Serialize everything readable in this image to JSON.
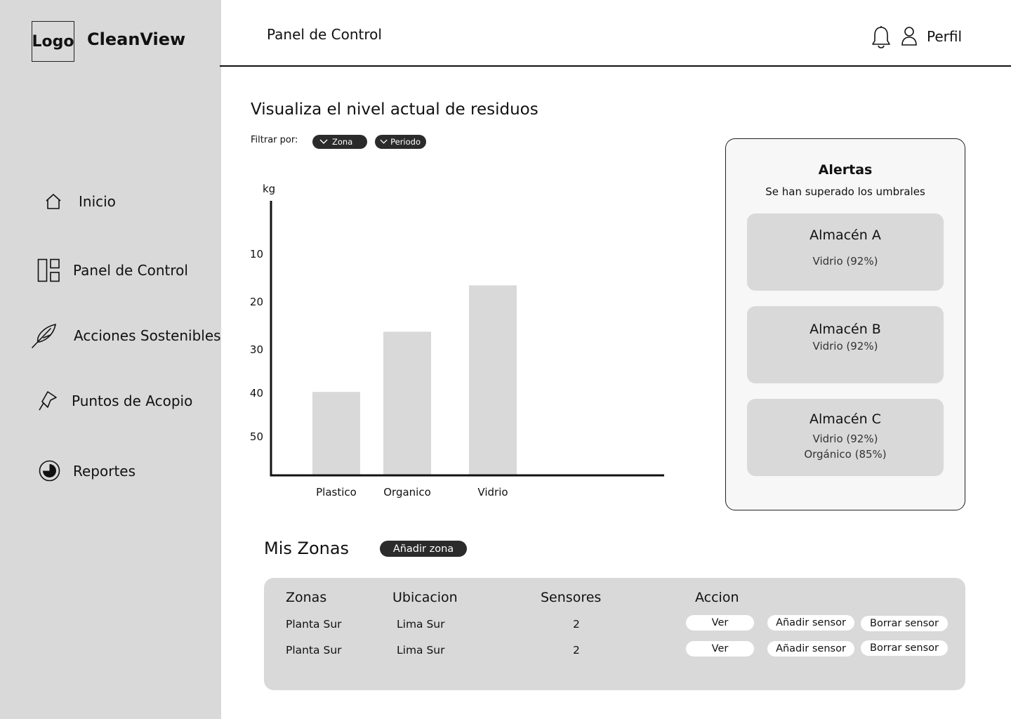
{
  "brand": {
    "logo_text": "Logo",
    "name": "CleanView"
  },
  "sidebar": {
    "items": [
      {
        "label": "Inicio",
        "icon": "home-icon"
      },
      {
        "label": "Panel de Control",
        "icon": "dashboard-icon"
      },
      {
        "label": "Acciones Sostenibles",
        "icon": "feather-icon"
      },
      {
        "label": "Puntos de Acopio",
        "icon": "pin-icon"
      },
      {
        "label": "Reportes",
        "icon": "pie-chart-icon"
      }
    ]
  },
  "header": {
    "title": "Panel de Control",
    "profile_label": "Perfil"
  },
  "main": {
    "heading": "Visualiza el nivel actual de residuos",
    "filter_label": "Filtrar por:",
    "filters": [
      "Zona",
      "Periodo"
    ]
  },
  "chart_data": {
    "type": "bar",
    "categories": [
      "Plastico",
      "Organico",
      "Vidrio"
    ],
    "values": [
      18,
      31,
      41
    ],
    "ylabel": "kg",
    "yticks": [
      10,
      20,
      30,
      40,
      50
    ],
    "ylim": [
      0,
      57
    ],
    "grid": false,
    "bar_color": "#d9d9d9"
  },
  "alerts": {
    "title": "Alertas",
    "subtitle": "Se han superado los umbrales",
    "cards": [
      {
        "name": "Almacén A",
        "details": [
          "Vidrio (92%)"
        ]
      },
      {
        "name": "Almacén B",
        "details": [
          "Vidrio (92%)"
        ]
      },
      {
        "name": "Almacén C",
        "details": [
          "Vidrio (92%)",
          "Orgánico (85%)"
        ]
      }
    ]
  },
  "zones": {
    "title": "Mis Zonas",
    "add_label": "Añadir zona",
    "headers": [
      "Zonas",
      "Ubicacion",
      "Sensores",
      "Accion"
    ],
    "rows": [
      {
        "zona": "Planta Sur",
        "ubicacion": "Lima Sur",
        "sensores": "2"
      },
      {
        "zona": "Planta Sur",
        "ubicacion": "Lima Sur",
        "sensores": "2"
      }
    ],
    "actions": {
      "view": "Ver",
      "add_sensor": "Añadir sensor",
      "delete_sensor": "Borrar sensor"
    }
  }
}
